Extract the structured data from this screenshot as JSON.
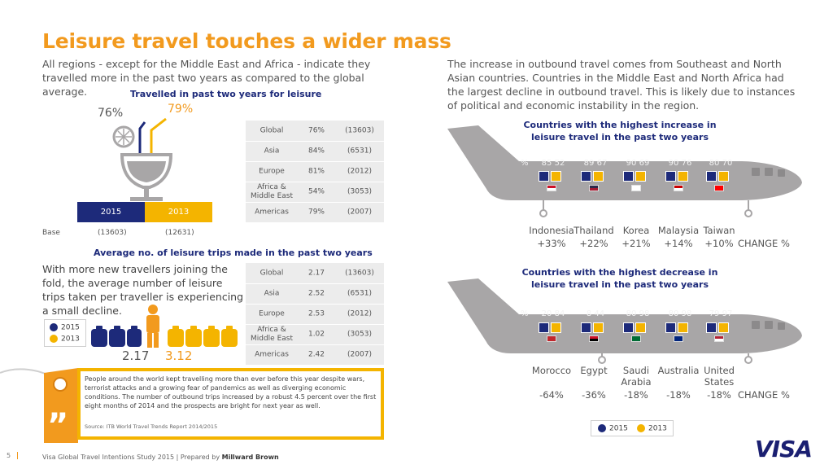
{
  "title": "Leisure travel touches a wider mass",
  "intro": "All regions - except for the Middle East and Africa - indicate they travelled more in the past two years as compared to the global average.",
  "right_text": "The increase in outbound travel comes from Southeast and North Asian countries. Countries in the Middle East and North Africa had the largest decline in outbound travel. This is likely due to instances of political and economic instability in the region.",
  "travelled": {
    "heading": "Travelled in past two years for leisure",
    "pct_2015": "76%",
    "pct_2013": "79%",
    "year_2015": "2015",
    "year_2013": "2013",
    "base_label": "Base",
    "base_2015": "(13603)",
    "base_2013": "(12631)",
    "rows": [
      {
        "region": "Global",
        "pct": "76%",
        "base": "(13603)"
      },
      {
        "region": "Asia",
        "pct": "84%",
        "base": "(6531)"
      },
      {
        "region": "Europe",
        "pct": "81%",
        "base": "(2012)"
      },
      {
        "region": "Africa & Middle East",
        "pct": "54%",
        "base": "(3053)"
      },
      {
        "region": "Americas",
        "pct": "79%",
        "base": "(2007)"
      }
    ]
  },
  "trips": {
    "heading": "Average no. of leisure trips made in the past two years",
    "text": "With more new travellers joining the fold, the average number of leisure trips taken per traveller is experiencing a small decline.",
    "legend_2015": "2015",
    "legend_2013": "2013",
    "value_2015": "2.17",
    "value_2013": "3.12",
    "rows": [
      {
        "region": "Global",
        "value": "2.17",
        "base": "(13603)"
      },
      {
        "region": "Asia",
        "value": "2.52",
        "base": "(6531)"
      },
      {
        "region": "Europe",
        "value": "2.53",
        "base": "(2012)"
      },
      {
        "region": "Africa & Middle East",
        "value": "1.02",
        "base": "(3053)"
      },
      {
        "region": "Americas",
        "value": "2.42",
        "base": "(2007)"
      }
    ]
  },
  "quote": {
    "text": "People around the world kept travelling more than ever before this year despite wars, terrorist attacks and a growing fear of pandemics as well as diverging economic conditions. The number of outbound trips increased by a robust 4.5 percent over the first eight months of 2014 and the prospects are bright for next year as well.",
    "source": "Source: ITB World Travel Trends Report 2014/2015"
  },
  "increase": {
    "heading": "Countries with the highest increase in leisure travel in the past two years",
    "pct_symbol": "%",
    "change_label": "CHANGE %",
    "countries": [
      {
        "name": "Indonesia",
        "v2015": "85",
        "v2013": "52",
        "change": "+33%",
        "flag_top": "#ce1126",
        "flag_bottom": "#ffffff"
      },
      {
        "name": "Thailand",
        "v2015": "89",
        "v2013": "67",
        "change": "+22%",
        "flag_top": "#2d2a4a",
        "flag_bottom": "#a51931"
      },
      {
        "name": "Korea",
        "v2015": "90",
        "v2013": "69",
        "change": "+21%",
        "flag_top": "#ffffff",
        "flag_bottom": "#ffffff"
      },
      {
        "name": "Malaysia",
        "v2015": "90",
        "v2013": "76",
        "change": "+14%",
        "flag_top": "#cc0001",
        "flag_bottom": "#ffffff"
      },
      {
        "name": "Taiwan",
        "v2015": "80",
        "v2013": "70",
        "change": "+10%",
        "flag_top": "#fe0000",
        "flag_bottom": "#fe0000"
      }
    ]
  },
  "decrease": {
    "heading": "Countries with the highest decrease in leisure travel in the past two years",
    "pct_symbol": "%",
    "change_label": "CHANGE %",
    "countries": [
      {
        "name": "Morocco",
        "v2015": "20",
        "v2013": "84",
        "change": "-64%",
        "flag_top": "#c1272d",
        "flag_bottom": "#c1272d"
      },
      {
        "name": "Egypt",
        "v2015": "8",
        "v2013": "44",
        "change": "-36%",
        "flag_top": "#ce1126",
        "flag_bottom": "#000000"
      },
      {
        "name": "Saudi Arabia",
        "v2015": "80",
        "v2013": "98",
        "change": "-18%",
        "flag_top": "#006c35",
        "flag_bottom": "#006c35"
      },
      {
        "name": "Australia",
        "v2015": "80",
        "v2013": "98",
        "change": "-18%",
        "flag_top": "#00247d",
        "flag_bottom": "#00247d"
      },
      {
        "name": "United States",
        "v2015": "79",
        "v2013": "97",
        "change": "-18%",
        "flag_top": "#b22234",
        "flag_bottom": "#ffffff"
      }
    ]
  },
  "legend": {
    "label_2015": "2015",
    "label_2013": "2013"
  },
  "colors": {
    "orange": "#f29a1e",
    "gold": "#f4b400",
    "navy": "#1d2a7a",
    "gray": "#a8a6a7"
  },
  "footer": {
    "page": "5",
    "text": "Visa Global Travel Intentions Study 2015 | Prepared by ",
    "brand": "Millward Brown",
    "logo": "VISA"
  }
}
